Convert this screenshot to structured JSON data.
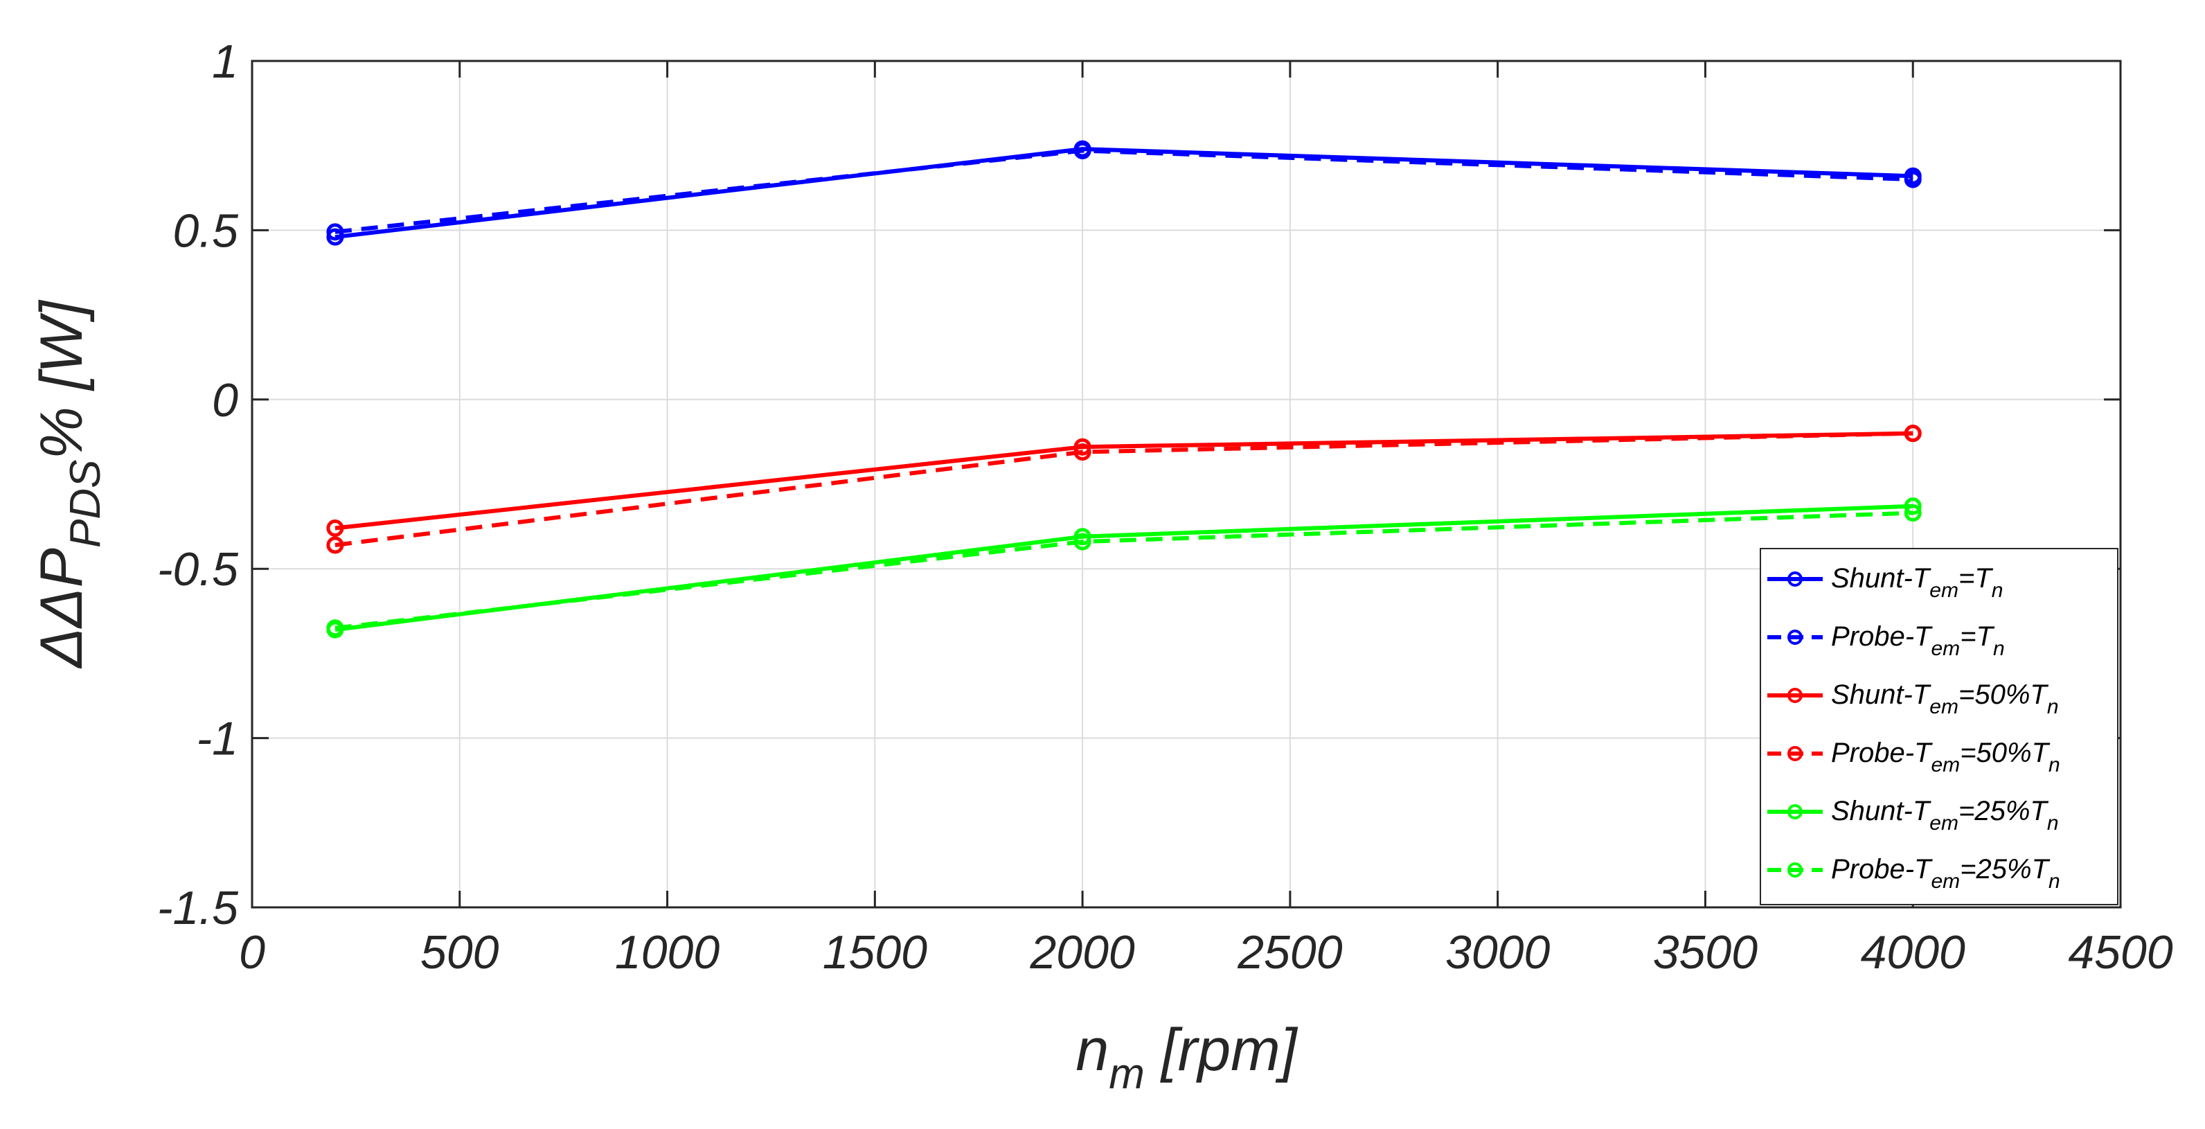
{
  "chart_data": {
    "type": "line",
    "title": "",
    "xlabel": {
      "main": "n",
      "sub": "m",
      "unit": " [rpm]"
    },
    "ylabel": {
      "prefix": "ΔΔP",
      "sub": "PDS",
      "suffix": "% [W]"
    },
    "xlim": [
      0,
      4500
    ],
    "ylim": [
      -1.5,
      1
    ],
    "xticks": [
      0,
      500,
      1000,
      1500,
      2000,
      2500,
      3000,
      3500,
      4000,
      4500
    ],
    "xtick_labels": [
      "0",
      "500",
      "1000",
      "1500",
      "2000",
      "2500",
      "3000",
      "3500",
      "4000",
      "4500"
    ],
    "yticks": [
      1,
      0.5,
      0,
      -0.5,
      -1,
      -1.5
    ],
    "ytick_labels": [
      "1",
      "0.5",
      "0",
      "-0.5",
      "-1",
      "-1.5"
    ],
    "grid": true,
    "legend_position": "bottom-right",
    "x": [
      200,
      2000,
      4000
    ],
    "series": [
      {
        "name": "Shunt-Tem=Tn",
        "legend_parts": [
          "Shunt-T",
          "em",
          "=T",
          "n"
        ],
        "color": "#0000ff",
        "dash": "solid",
        "values": [
          0.48,
          0.74,
          0.66
        ]
      },
      {
        "name": "Probe-Tem=Tn",
        "legend_parts": [
          "Probe-T",
          "em",
          "=T",
          "n"
        ],
        "color": "#0000ff",
        "dash": "dashed",
        "values": [
          0.495,
          0.735,
          0.65
        ]
      },
      {
        "name": "Shunt-Tem=50%Tn",
        "legend_parts": [
          "Shunt-T",
          "em",
          "=50%T",
          "n"
        ],
        "color": "#ff0000",
        "dash": "solid",
        "values": [
          -0.38,
          -0.14,
          -0.1
        ]
      },
      {
        "name": "Probe-Tem=50%Tn",
        "legend_parts": [
          "Probe-T",
          "em",
          "=50%T",
          "n"
        ],
        "color": "#ff0000",
        "dash": "dashed",
        "values": [
          -0.43,
          -0.155,
          -0.1
        ]
      },
      {
        "name": "Shunt-Tem=25%Tn",
        "legend_parts": [
          "Shunt-T",
          "em",
          "=25%T",
          "n"
        ],
        "color": "#00ff00",
        "dash": "solid",
        "values": [
          -0.68,
          -0.405,
          -0.315
        ]
      },
      {
        "name": "Probe-Tem=25%Tn",
        "legend_parts": [
          "Probe-T",
          "em",
          "=25%T",
          "n"
        ],
        "color": "#00ff00",
        "dash": "dashed",
        "values": [
          -0.675,
          -0.42,
          -0.335
        ]
      }
    ]
  }
}
